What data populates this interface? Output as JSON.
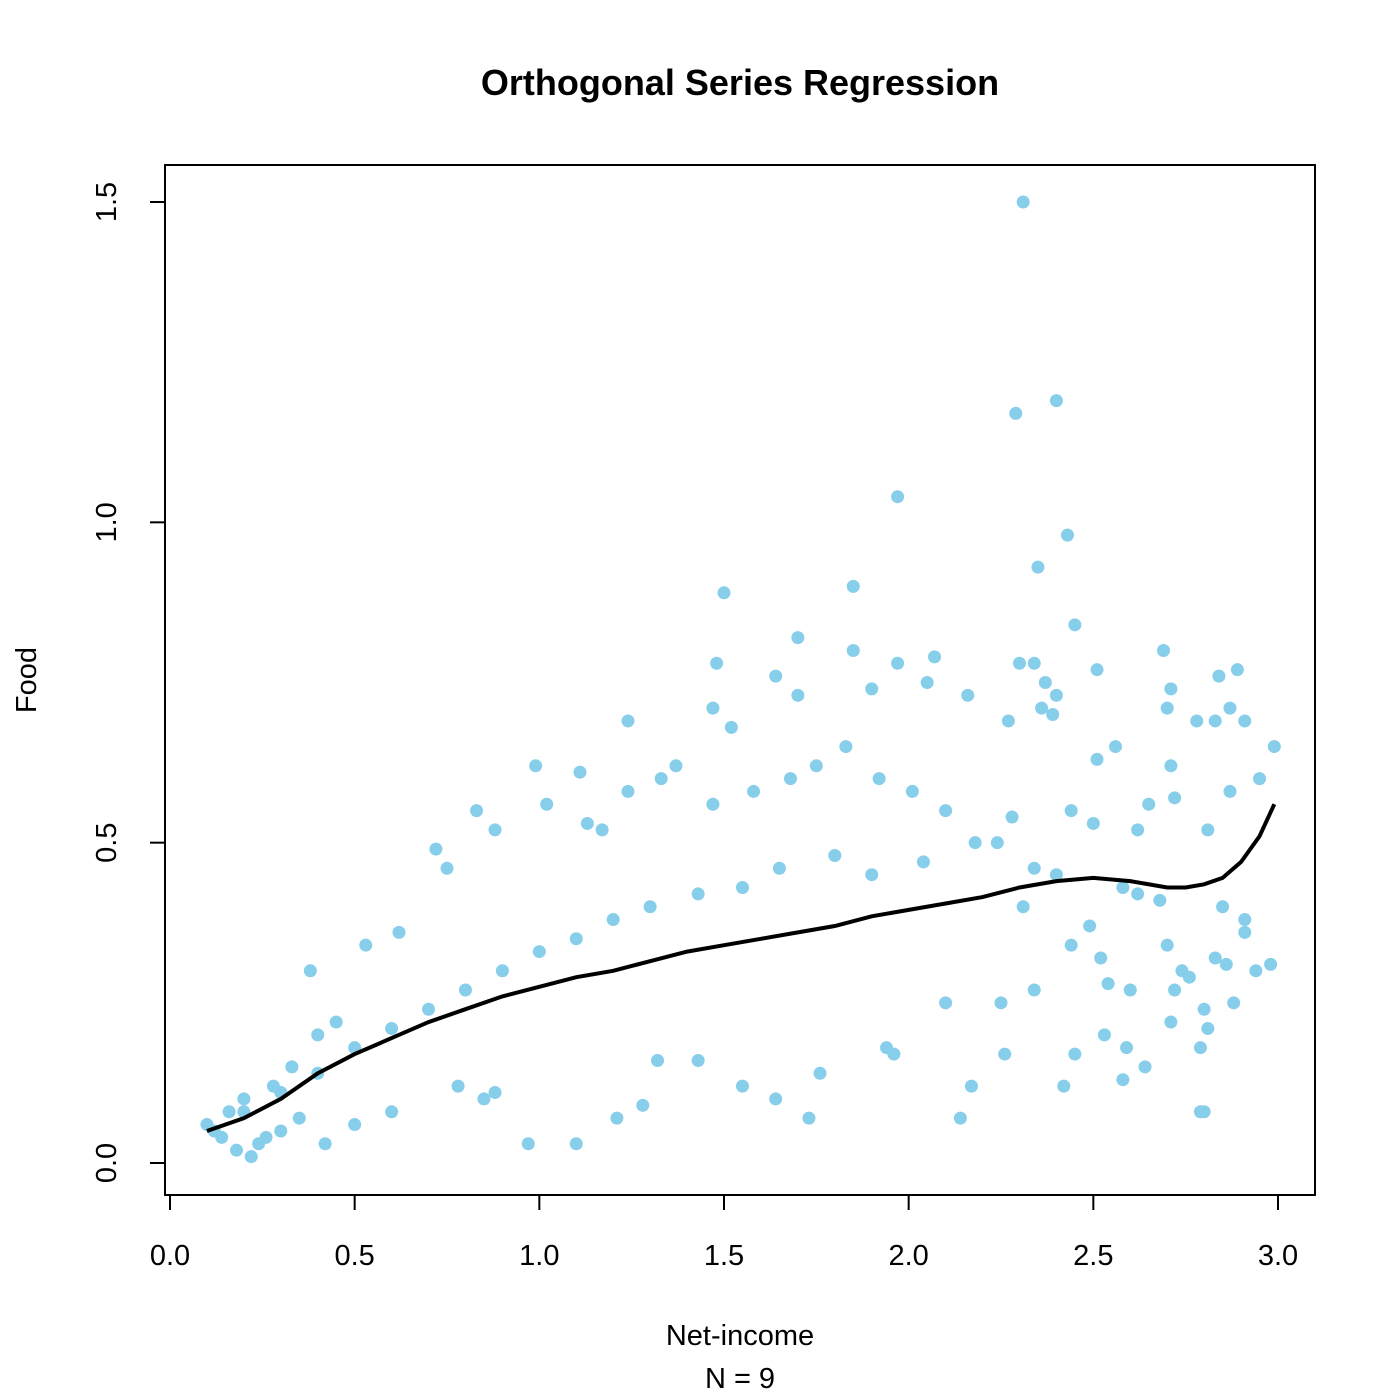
{
  "chart_data": {
    "type": "scatter",
    "title": "Orthogonal Series Regression",
    "xlabel": "Net-income",
    "sublabel": "N = 9",
    "ylabel": "Food",
    "xlim": [
      0.0,
      3.0
    ],
    "ylim": [
      0.0,
      1.5
    ],
    "x_ticks": [
      {
        "value": 0.0,
        "label": "0.0"
      },
      {
        "value": 0.5,
        "label": "0.5"
      },
      {
        "value": 1.0,
        "label": "1.0"
      },
      {
        "value": 1.5,
        "label": "1.5"
      },
      {
        "value": 2.0,
        "label": "2.0"
      },
      {
        "value": 2.5,
        "label": "2.5"
      },
      {
        "value": 3.0,
        "label": "3.0"
      }
    ],
    "y_ticks": [
      {
        "value": 0.0,
        "label": "0.0"
      },
      {
        "value": 0.5,
        "label": "0.5"
      },
      {
        "value": 1.0,
        "label": "1.0"
      },
      {
        "value": 1.5,
        "label": "1.5"
      }
    ],
    "grid": false,
    "point_color": "#87CEEB",
    "line_color": "#000000",
    "series": [
      {
        "type": "scatter",
        "points": [
          [
            2.31,
            1.5
          ],
          [
            2.29,
            1.17
          ],
          [
            2.4,
            1.19
          ],
          [
            1.97,
            1.04
          ],
          [
            2.43,
            0.98
          ],
          [
            2.35,
            0.93
          ],
          [
            1.5,
            0.89
          ],
          [
            1.85,
            0.9
          ],
          [
            2.45,
            0.84
          ],
          [
            1.7,
            0.82
          ],
          [
            1.85,
            0.8
          ],
          [
            2.69,
            0.8
          ],
          [
            2.07,
            0.79
          ],
          [
            2.3,
            0.78
          ],
          [
            2.34,
            0.78
          ],
          [
            1.48,
            0.78
          ],
          [
            1.97,
            0.78
          ],
          [
            2.51,
            0.77
          ],
          [
            2.89,
            0.77
          ],
          [
            1.64,
            0.76
          ],
          [
            2.84,
            0.76
          ],
          [
            2.05,
            0.75
          ],
          [
            2.37,
            0.75
          ],
          [
            2.71,
            0.74
          ],
          [
            1.9,
            0.74
          ],
          [
            1.7,
            0.73
          ],
          [
            2.4,
            0.73
          ],
          [
            2.16,
            0.73
          ],
          [
            2.36,
            0.71
          ],
          [
            2.7,
            0.71
          ],
          [
            2.87,
            0.71
          ],
          [
            1.47,
            0.71
          ],
          [
            1.24,
            0.69
          ],
          [
            2.78,
            0.69
          ],
          [
            2.83,
            0.69
          ],
          [
            2.91,
            0.69
          ],
          [
            2.39,
            0.7
          ],
          [
            1.52,
            0.68
          ],
          [
            2.99,
            0.65
          ],
          [
            2.56,
            0.65
          ],
          [
            2.27,
            0.69
          ],
          [
            2.51,
            0.63
          ],
          [
            2.71,
            0.62
          ],
          [
            0.99,
            0.62
          ],
          [
            1.11,
            0.61
          ],
          [
            2.95,
            0.6
          ],
          [
            2.87,
            0.58
          ],
          [
            2.72,
            0.57
          ],
          [
            2.81,
            0.52
          ],
          [
            2.62,
            0.52
          ],
          [
            2.65,
            0.56
          ],
          [
            2.44,
            0.55
          ],
          [
            2.28,
            0.54
          ],
          [
            2.5,
            0.53
          ],
          [
            2.24,
            0.5
          ],
          [
            2.34,
            0.46
          ],
          [
            2.4,
            0.45
          ],
          [
            2.58,
            0.43
          ],
          [
            2.62,
            0.42
          ],
          [
            2.68,
            0.41
          ],
          [
            2.85,
            0.4
          ],
          [
            2.31,
            0.4
          ],
          [
            2.49,
            0.37
          ],
          [
            2.7,
            0.34
          ],
          [
            2.91,
            0.38
          ],
          [
            2.91,
            0.36
          ],
          [
            2.44,
            0.34
          ],
          [
            2.52,
            0.32
          ],
          [
            2.74,
            0.3
          ],
          [
            2.83,
            0.32
          ],
          [
            2.86,
            0.31
          ],
          [
            2.94,
            0.3
          ],
          [
            2.98,
            0.31
          ],
          [
            2.6,
            0.27
          ],
          [
            2.54,
            0.28
          ],
          [
            2.34,
            0.27
          ],
          [
            2.25,
            0.25
          ],
          [
            2.1,
            0.25
          ],
          [
            2.72,
            0.27
          ],
          [
            2.76,
            0.29
          ],
          [
            2.8,
            0.24
          ],
          [
            2.71,
            0.22
          ],
          [
            2.81,
            0.21
          ],
          [
            2.88,
            0.25
          ],
          [
            2.53,
            0.2
          ],
          [
            2.45,
            0.17
          ],
          [
            2.42,
            0.12
          ],
          [
            2.59,
            0.18
          ],
          [
            2.64,
            0.15
          ],
          [
            2.79,
            0.18
          ],
          [
            2.8,
            0.08
          ],
          [
            2.79,
            0.08
          ],
          [
            2.58,
            0.13
          ],
          [
            2.26,
            0.17
          ],
          [
            2.17,
            0.12
          ],
          [
            2.14,
            0.07
          ],
          [
            1.96,
            0.17
          ],
          [
            1.94,
            0.18
          ],
          [
            1.76,
            0.14
          ],
          [
            1.73,
            0.07
          ],
          [
            1.64,
            0.1
          ],
          [
            1.55,
            0.12
          ],
          [
            1.43,
            0.16
          ],
          [
            1.32,
            0.16
          ],
          [
            1.1,
            0.03
          ],
          [
            0.97,
            0.03
          ],
          [
            1.21,
            0.07
          ],
          [
            1.28,
            0.09
          ],
          [
            0.88,
            0.11
          ],
          [
            0.85,
            0.1
          ],
          [
            0.78,
            0.12
          ],
          [
            0.6,
            0.08
          ],
          [
            0.5,
            0.06
          ],
          [
            0.42,
            0.03
          ],
          [
            0.35,
            0.07
          ],
          [
            0.3,
            0.05
          ],
          [
            0.26,
            0.04
          ],
          [
            0.24,
            0.03
          ],
          [
            0.22,
            0.01
          ],
          [
            0.18,
            0.02
          ],
          [
            0.14,
            0.04
          ],
          [
            0.12,
            0.05
          ],
          [
            0.1,
            0.06
          ],
          [
            0.16,
            0.08
          ],
          [
            0.2,
            0.1
          ],
          [
            0.28,
            0.12
          ],
          [
            0.33,
            0.15
          ],
          [
            0.4,
            0.2
          ],
          [
            0.45,
            0.22
          ],
          [
            0.38,
            0.3
          ],
          [
            0.53,
            0.34
          ],
          [
            0.62,
            0.36
          ],
          [
            0.72,
            0.49
          ],
          [
            0.75,
            0.46
          ],
          [
            0.83,
            0.55
          ],
          [
            0.88,
            0.52
          ],
          [
            1.02,
            0.56
          ],
          [
            1.13,
            0.53
          ],
          [
            1.17,
            0.52
          ],
          [
            1.24,
            0.58
          ],
          [
            1.33,
            0.6
          ],
          [
            1.37,
            0.62
          ],
          [
            1.47,
            0.56
          ],
          [
            1.58,
            0.58
          ],
          [
            1.68,
            0.6
          ],
          [
            1.75,
            0.62
          ],
          [
            1.83,
            0.65
          ],
          [
            1.92,
            0.6
          ],
          [
            2.01,
            0.58
          ],
          [
            2.1,
            0.55
          ],
          [
            2.18,
            0.5
          ],
          [
            2.04,
            0.47
          ],
          [
            1.9,
            0.45
          ],
          [
            1.8,
            0.48
          ],
          [
            1.65,
            0.46
          ],
          [
            1.55,
            0.43
          ],
          [
            1.43,
            0.42
          ],
          [
            1.3,
            0.4
          ],
          [
            1.2,
            0.38
          ],
          [
            1.1,
            0.35
          ],
          [
            1.0,
            0.33
          ],
          [
            0.9,
            0.3
          ],
          [
            0.8,
            0.27
          ],
          [
            0.7,
            0.24
          ],
          [
            0.6,
            0.21
          ],
          [
            0.5,
            0.18
          ],
          [
            0.4,
            0.14
          ],
          [
            0.3,
            0.11
          ],
          [
            0.2,
            0.08
          ]
        ]
      },
      {
        "type": "line",
        "points": [
          [
            0.1,
            0.05
          ],
          [
            0.2,
            0.07
          ],
          [
            0.3,
            0.1
          ],
          [
            0.4,
            0.14
          ],
          [
            0.5,
            0.17
          ],
          [
            0.6,
            0.195
          ],
          [
            0.7,
            0.22
          ],
          [
            0.8,
            0.24
          ],
          [
            0.9,
            0.26
          ],
          [
            1.0,
            0.275
          ],
          [
            1.1,
            0.29
          ],
          [
            1.2,
            0.3
          ],
          [
            1.3,
            0.315
          ],
          [
            1.4,
            0.33
          ],
          [
            1.5,
            0.34
          ],
          [
            1.6,
            0.35
          ],
          [
            1.7,
            0.36
          ],
          [
            1.8,
            0.37
          ],
          [
            1.9,
            0.385
          ],
          [
            2.0,
            0.395
          ],
          [
            2.1,
            0.405
          ],
          [
            2.2,
            0.415
          ],
          [
            2.3,
            0.43
          ],
          [
            2.4,
            0.44
          ],
          [
            2.5,
            0.445
          ],
          [
            2.6,
            0.44
          ],
          [
            2.7,
            0.43
          ],
          [
            2.75,
            0.43
          ],
          [
            2.8,
            0.435
          ],
          [
            2.85,
            0.445
          ],
          [
            2.9,
            0.47
          ],
          [
            2.95,
            0.51
          ],
          [
            2.99,
            0.56
          ]
        ]
      }
    ]
  }
}
